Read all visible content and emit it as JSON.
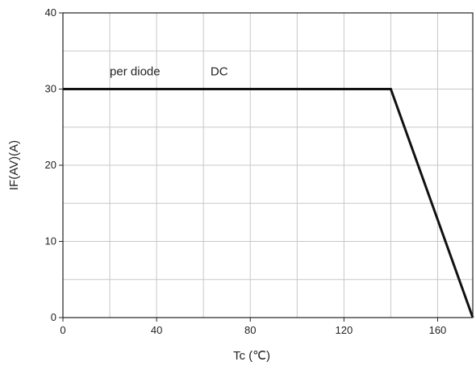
{
  "chart_data": {
    "type": "line",
    "xlabel": "Tc (℃)",
    "ylabel": "IF(AV)(A)",
    "xlim": [
      0,
      175
    ],
    "ylim": [
      0,
      40
    ],
    "x_ticks": [
      0,
      40,
      80,
      120,
      160
    ],
    "x_tick_labels": [
      "0",
      "40",
      "80",
      "120",
      "160"
    ],
    "y_ticks": [
      0,
      10,
      20,
      30,
      40
    ],
    "y_tick_labels": [
      "0",
      "10",
      "20",
      "30",
      "40"
    ],
    "x_minor_step": 20,
    "y_minor_step": 5,
    "grid": true,
    "series": [
      {
        "name": "DC",
        "x": [
          0,
          140,
          175
        ],
        "y": [
          30,
          30,
          0
        ]
      }
    ],
    "annotations": [
      {
        "text": "per diode",
        "x": 20,
        "y": 31.8
      },
      {
        "text": "DC",
        "x": 63,
        "y": 31.8
      }
    ],
    "colors": {
      "line": "#111111",
      "grid": "#c8c8c8",
      "axes": "#222222"
    }
  }
}
